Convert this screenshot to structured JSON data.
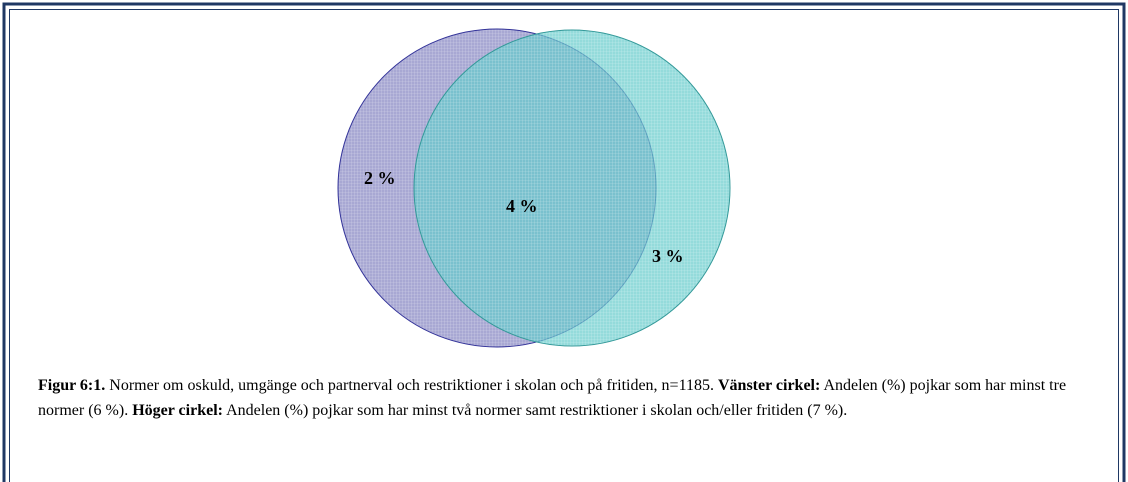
{
  "venn": {
    "sets": [
      {
        "name": "left",
        "color": "#9999cc",
        "stroke": "#333399"
      },
      {
        "name": "right",
        "color": "#66cccc",
        "stroke": "#339999"
      }
    ],
    "labels": {
      "left_only": "2 %",
      "both": "4 %",
      "right_only": "3 %"
    }
  },
  "caption": {
    "figure": "Figur 6:1.",
    "text": " Normer om oskuld, umgänge och partnerval och restriktioner i skolan och på fritiden, n=1185. ",
    "left_label": "Vänster cirkel:",
    "left_text": " Andelen (%) pojkar som har minst tre normer (6 %). ",
    "right_label": "Höger cirkel:",
    "right_text": " Andelen (%) pojkar som har minst två normer samt restriktioner i skolan och/eller fritiden (7 %)."
  }
}
